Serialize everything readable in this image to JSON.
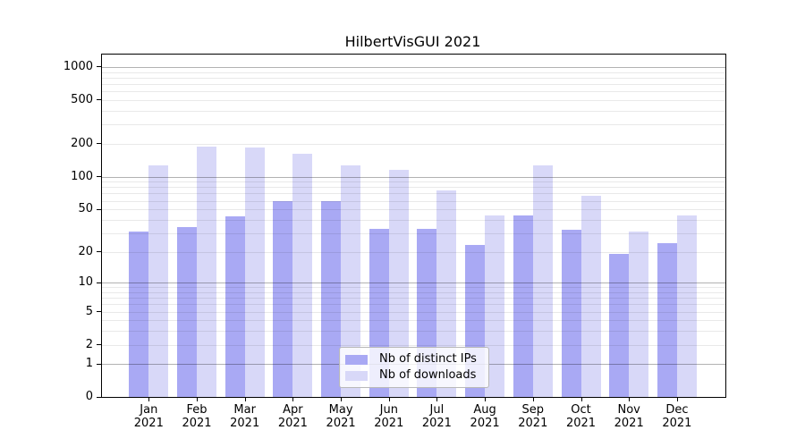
{
  "chart_data": {
    "type": "bar",
    "title": "HilbertVisGUI 2021",
    "categories": [
      "Jan",
      "Feb",
      "Mar",
      "Apr",
      "May",
      "Jun",
      "Jul",
      "Aug",
      "Sep",
      "Oct",
      "Nov",
      "Dec"
    ],
    "category_year": "2021",
    "series": [
      {
        "name": "Nb of distinct IPs",
        "color": "#a9a9f4",
        "values": [
          31,
          34,
          43,
          60,
          60,
          33,
          33,
          23,
          44,
          32,
          19,
          24
        ]
      },
      {
        "name": "Nb of downloads",
        "color": "#d8d8f8",
        "values": [
          126,
          187,
          185,
          163,
          128,
          115,
          75,
          44,
          128,
          67,
          31,
          44
        ]
      }
    ],
    "xlabel": "",
    "ylabel": "",
    "yscale": "log10(value+1)",
    "yticks": [
      0,
      1,
      2,
      5,
      10,
      20,
      50,
      100,
      200,
      500,
      1000
    ],
    "ylim": [
      0,
      1300
    ],
    "grid": "minor log gridlines light gray, decade gridlines darker gray, drawn over bars",
    "legend_position": "lower center inside plot"
  },
  "colors": {
    "bar_dark": "#a9a9f4",
    "bar_light": "#d8d8f8",
    "grid_major": "#b3b3b3",
    "grid_minor": "#ebebeb",
    "axis": "#000000",
    "background": "#ffffff"
  }
}
